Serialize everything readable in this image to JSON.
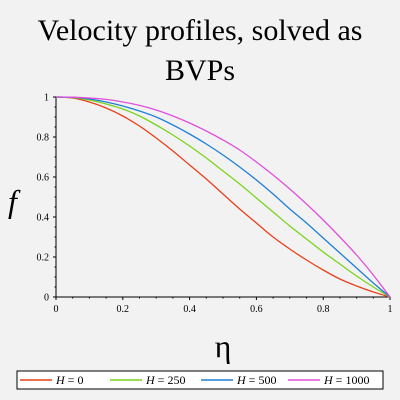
{
  "chart_data": {
    "type": "line",
    "title": [
      "Velocity profiles, solved as",
      "BVPs"
    ],
    "xlabel": "η",
    "ylabel": "f",
    "xlim": [
      0,
      1
    ],
    "ylim": [
      0,
      1
    ],
    "x_ticks": [
      "0",
      "0.2",
      "0.4",
      "0.6",
      "0.8",
      "1"
    ],
    "y_ticks": [
      "0",
      "0.2",
      "0.4",
      "0.6",
      "0.8",
      "1"
    ],
    "grid": false,
    "legend_position": "bottom",
    "x": [
      0,
      0.05,
      0.1,
      0.15,
      0.2,
      0.25,
      0.3,
      0.35,
      0.4,
      0.45,
      0.5,
      0.55,
      0.6,
      0.65,
      0.7,
      0.75,
      0.8,
      0.85,
      0.9,
      0.95,
      1.0
    ],
    "series": [
      {
        "name": "H = 0",
        "var": "H",
        "value": "0",
        "color": "#e8401a",
        "values": [
          1.0,
          0.995,
          0.975,
          0.945,
          0.905,
          0.855,
          0.795,
          0.73,
          0.66,
          0.59,
          0.515,
          0.44,
          0.37,
          0.3,
          0.24,
          0.185,
          0.135,
          0.09,
          0.055,
          0.025,
          0.0
        ]
      },
      {
        "name": "H = 250",
        "var": "H",
        "value": "250",
        "color": "#7ad31a",
        "values": [
          1.0,
          0.997,
          0.985,
          0.965,
          0.94,
          0.905,
          0.86,
          0.81,
          0.755,
          0.695,
          0.63,
          0.565,
          0.495,
          0.425,
          0.355,
          0.29,
          0.225,
          0.165,
          0.105,
          0.05,
          0.0
        ]
      },
      {
        "name": "H = 500",
        "var": "H",
        "value": "500",
        "color": "#1f7fd6",
        "values": [
          1.0,
          0.998,
          0.99,
          0.975,
          0.955,
          0.93,
          0.9,
          0.86,
          0.815,
          0.765,
          0.71,
          0.65,
          0.585,
          0.515,
          0.44,
          0.37,
          0.295,
          0.22,
          0.145,
          0.07,
          0.0
        ]
      },
      {
        "name": "H = 1000",
        "var": "H",
        "value": "1000",
        "color": "#e14fdb",
        "values": [
          1.0,
          0.999,
          0.995,
          0.988,
          0.975,
          0.958,
          0.935,
          0.905,
          0.87,
          0.83,
          0.785,
          0.735,
          0.675,
          0.61,
          0.54,
          0.465,
          0.385,
          0.3,
          0.21,
          0.11,
          0.0
        ]
      }
    ]
  }
}
